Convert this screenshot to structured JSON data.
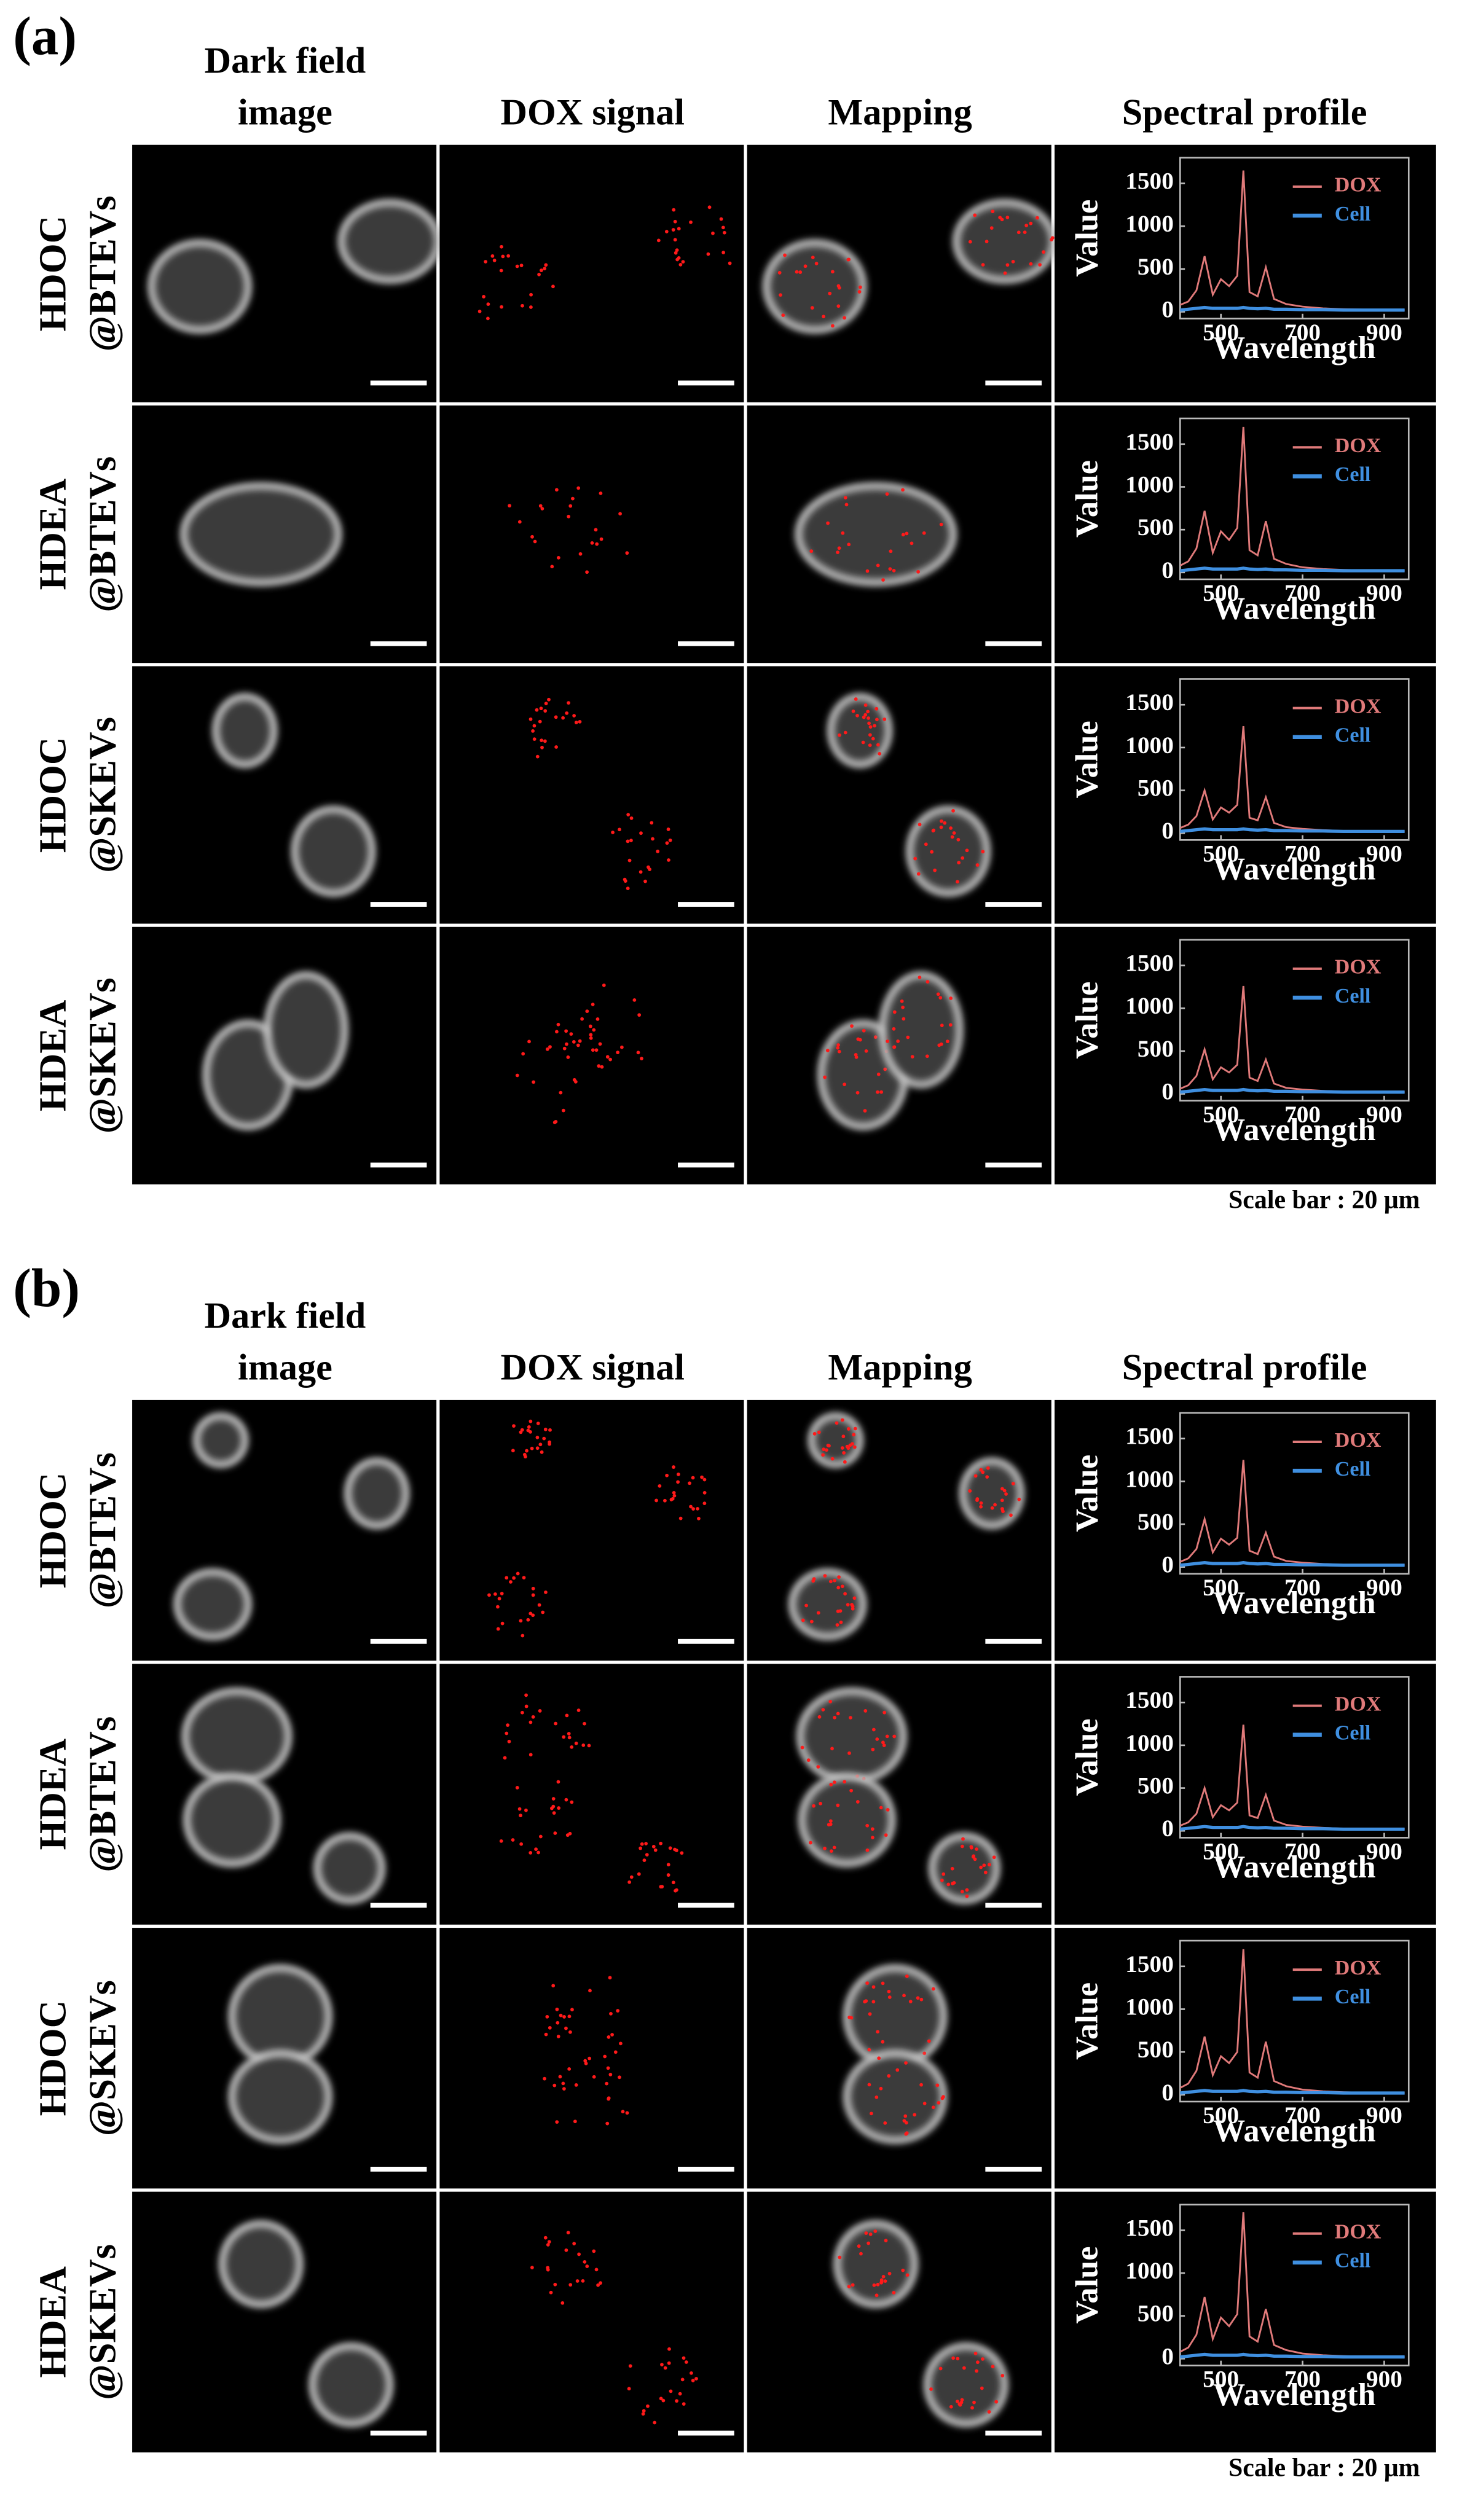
{
  "panels": [
    {
      "label": "(a)",
      "columns": [
        [
          "Dark field",
          "image"
        ],
        [
          "DOX signal"
        ],
        [
          "Mapping"
        ],
        [
          "Spectral profile"
        ]
      ],
      "rows": [
        {
          "sample": "HDOC",
          "carrier": "@BTEVs",
          "spectrum": {
            "type": "line",
            "xlabel": "Wavelength",
            "ylabel": "Value",
            "x": [
              400,
              420,
              440,
              460,
              480,
              500,
              520,
              540,
              555,
              570,
              590,
              610,
              630,
              660,
              700,
              750,
              800,
              850,
              900,
              950
            ],
            "xlim": [
              400,
              960
            ],
            "ylim": [
              -80,
              1800
            ],
            "xticks": [
              500,
              700,
              900
            ],
            "yticks": [
              0,
              500,
              1000,
              1500
            ],
            "legend": "upper right",
            "series": [
              {
                "name": "DOX",
                "color": "#e07a7a",
                "values": [
                  80,
                  120,
                  250,
                  650,
                  200,
                  380,
                  300,
                  420,
                  1650,
                  230,
                  180,
                  520,
                  150,
                  90,
                  60,
                  40,
                  30,
                  25,
                  20,
                  20
                ]
              },
              {
                "name": "Cell",
                "color": "#3f8fe0",
                "values": [
                  20,
                  30,
                  40,
                  50,
                  40,
                  40,
                  40,
                  40,
                  50,
                  40,
                  35,
                  40,
                  30,
                  30,
                  25,
                  25,
                  20,
                  20,
                  20,
                  20
                ]
              }
            ]
          }
        },
        {
          "sample": "HDEA",
          "carrier": "@BTEVs",
          "spectrum": {
            "type": "line",
            "xlabel": "Wavelength",
            "ylabel": "Value",
            "x": [
              400,
              420,
              440,
              460,
              480,
              500,
              520,
              540,
              555,
              570,
              590,
              610,
              630,
              660,
              700,
              750,
              800,
              850,
              900,
              950
            ],
            "xlim": [
              400,
              960
            ],
            "ylim": [
              -80,
              1800
            ],
            "xticks": [
              500,
              700,
              900
            ],
            "yticks": [
              0,
              500,
              1000,
              1500
            ],
            "legend": "upper right",
            "series": [
              {
                "name": "DOX",
                "color": "#e07a7a",
                "values": [
                  80,
                  130,
                  280,
                  720,
                  230,
                  480,
                  380,
                  520,
                  1700,
                  260,
                  200,
                  600,
                  160,
                  100,
                  60,
                  40,
                  30,
                  25,
                  20,
                  20
                ]
              },
              {
                "name": "Cell",
                "color": "#3f8fe0",
                "values": [
                  20,
                  30,
                  40,
                  50,
                  40,
                  40,
                  40,
                  40,
                  50,
                  40,
                  35,
                  40,
                  30,
                  30,
                  25,
                  25,
                  20,
                  20,
                  20,
                  20
                ]
              }
            ]
          }
        },
        {
          "sample": "HDOC",
          "carrier": "@SKEVs",
          "spectrum": {
            "type": "line",
            "xlabel": "Wavelength",
            "ylabel": "Value",
            "x": [
              400,
              420,
              440,
              460,
              480,
              500,
              520,
              540,
              555,
              570,
              590,
              610,
              630,
              660,
              700,
              750,
              800,
              850,
              900,
              950
            ],
            "xlim": [
              400,
              960
            ],
            "ylim": [
              -80,
              1800
            ],
            "xticks": [
              500,
              700,
              900
            ],
            "yticks": [
              0,
              500,
              1000,
              1500
            ],
            "legend": "upper right",
            "series": [
              {
                "name": "DOX",
                "color": "#e07a7a",
                "values": [
                  60,
                  100,
                  200,
                  500,
                  160,
                  300,
                  240,
                  330,
                  1250,
                  180,
                  150,
                  420,
                  120,
                  70,
                  50,
                  35,
                  25,
                  20,
                  20,
                  20
                ]
              },
              {
                "name": "Cell",
                "color": "#3f8fe0",
                "values": [
                  20,
                  30,
                  40,
                  50,
                  40,
                  40,
                  40,
                  40,
                  50,
                  40,
                  35,
                  40,
                  30,
                  30,
                  25,
                  25,
                  20,
                  20,
                  20,
                  20
                ]
              }
            ]
          }
        },
        {
          "sample": "HDEA",
          "carrier": "@SKEVs",
          "spectrum": {
            "type": "line",
            "xlabel": "Wavelength",
            "ylabel": "Value",
            "x": [
              400,
              420,
              440,
              460,
              480,
              500,
              520,
              540,
              555,
              570,
              590,
              610,
              630,
              660,
              700,
              750,
              800,
              850,
              900,
              950
            ],
            "xlim": [
              400,
              960
            ],
            "ylim": [
              -80,
              1800
            ],
            "xticks": [
              500,
              700,
              900
            ],
            "yticks": [
              0,
              500,
              1000,
              1500
            ],
            "legend": "upper right",
            "series": [
              {
                "name": "DOX",
                "color": "#e07a7a",
                "values": [
                  60,
                  100,
                  210,
                  520,
                  170,
                  310,
                  250,
                  340,
                  1260,
                  190,
                  150,
                  400,
                  120,
                  70,
                  50,
                  35,
                  25,
                  20,
                  20,
                  20
                ]
              },
              {
                "name": "Cell",
                "color": "#3f8fe0",
                "values": [
                  20,
                  30,
                  40,
                  50,
                  40,
                  40,
                  40,
                  40,
                  50,
                  40,
                  35,
                  40,
                  30,
                  30,
                  25,
                  25,
                  20,
                  20,
                  20,
                  20
                ]
              }
            ]
          }
        }
      ],
      "scale_bar": "Scale bar : 20 μm"
    },
    {
      "label": "(b)",
      "columns": [
        [
          "Dark field",
          "image"
        ],
        [
          "DOX signal"
        ],
        [
          "Mapping"
        ],
        [
          "Spectral profile"
        ]
      ],
      "rows": [
        {
          "sample": "HDOC",
          "carrier": "@BTEVs",
          "spectrum": {
            "type": "line",
            "xlabel": "Wavelength",
            "ylabel": "Value",
            "x": [
              400,
              420,
              440,
              460,
              480,
              500,
              520,
              540,
              555,
              570,
              590,
              610,
              630,
              660,
              700,
              750,
              800,
              850,
              900,
              950
            ],
            "xlim": [
              400,
              960
            ],
            "ylim": [
              -80,
              1800
            ],
            "xticks": [
              500,
              700,
              900
            ],
            "yticks": [
              0,
              500,
              1000,
              1500
            ],
            "legend": "upper right",
            "series": [
              {
                "name": "DOX",
                "color": "#e07a7a",
                "values": [
                  60,
                  100,
                  210,
                  560,
                  170,
                  330,
                  260,
                  340,
                  1250,
                  190,
                  150,
                  400,
                  120,
                  70,
                  50,
                  35,
                  25,
                  20,
                  20,
                  20
                ]
              },
              {
                "name": "Cell",
                "color": "#3f8fe0",
                "values": [
                  20,
                  30,
                  40,
                  50,
                  40,
                  40,
                  40,
                  40,
                  50,
                  40,
                  35,
                  40,
                  30,
                  30,
                  25,
                  25,
                  20,
                  20,
                  20,
                  20
                ]
              }
            ]
          }
        },
        {
          "sample": "HDEA",
          "carrier": "@BTEVs",
          "spectrum": {
            "type": "line",
            "xlabel": "Wavelength",
            "ylabel": "Value",
            "x": [
              400,
              420,
              440,
              460,
              480,
              500,
              520,
              540,
              555,
              570,
              590,
              610,
              630,
              660,
              700,
              750,
              800,
              850,
              900,
              950
            ],
            "xlim": [
              400,
              960
            ],
            "ylim": [
              -80,
              1800
            ],
            "xticks": [
              500,
              700,
              900
            ],
            "yticks": [
              0,
              500,
              1000,
              1500
            ],
            "legend": "upper right",
            "series": [
              {
                "name": "DOX",
                "color": "#e07a7a",
                "values": [
                  60,
                  100,
                  200,
                  500,
                  160,
                  300,
                  240,
                  330,
                  1240,
                  180,
                  150,
                  420,
                  120,
                  70,
                  50,
                  35,
                  25,
                  20,
                  20,
                  20
                ]
              },
              {
                "name": "Cell",
                "color": "#3f8fe0",
                "values": [
                  20,
                  30,
                  40,
                  50,
                  40,
                  40,
                  40,
                  40,
                  50,
                  40,
                  35,
                  40,
                  30,
                  30,
                  25,
                  25,
                  20,
                  20,
                  20,
                  20
                ]
              }
            ]
          }
        },
        {
          "sample": "HDOC",
          "carrier": "@SKEVs",
          "spectrum": {
            "type": "line",
            "xlabel": "Wavelength",
            "ylabel": "Value",
            "x": [
              400,
              420,
              440,
              460,
              480,
              500,
              520,
              540,
              555,
              570,
              590,
              610,
              630,
              660,
              700,
              750,
              800,
              850,
              900,
              950
            ],
            "xlim": [
              400,
              960
            ],
            "ylim": [
              -80,
              1800
            ],
            "xticks": [
              500,
              700,
              900
            ],
            "yticks": [
              0,
              500,
              1000,
              1500
            ],
            "legend": "upper right",
            "series": [
              {
                "name": "DOX",
                "color": "#e07a7a",
                "values": [
                  80,
                  130,
                  280,
                  680,
                  230,
                  450,
                  370,
                  500,
                  1700,
                  260,
                  200,
                  620,
                  160,
                  100,
                  60,
                  40,
                  30,
                  25,
                  20,
                  20
                ]
              },
              {
                "name": "Cell",
                "color": "#3f8fe0",
                "values": [
                  20,
                  30,
                  40,
                  50,
                  40,
                  40,
                  40,
                  40,
                  50,
                  40,
                  35,
                  40,
                  30,
                  30,
                  25,
                  25,
                  20,
                  20,
                  20,
                  20
                ]
              }
            ]
          }
        },
        {
          "sample": "HDEA",
          "carrier": "@SKEVs",
          "spectrum": {
            "type": "line",
            "xlabel": "Wavelength",
            "ylabel": "Value",
            "x": [
              400,
              420,
              440,
              460,
              480,
              500,
              520,
              540,
              555,
              570,
              590,
              610,
              630,
              660,
              700,
              750,
              800,
              850,
              900,
              950
            ],
            "xlim": [
              400,
              960
            ],
            "ylim": [
              -80,
              1800
            ],
            "xticks": [
              500,
              700,
              900
            ],
            "yticks": [
              0,
              500,
              1000,
              1500
            ],
            "legend": "upper right",
            "series": [
              {
                "name": "DOX",
                "color": "#e07a7a",
                "values": [
                  80,
                  130,
                  280,
                  720,
                  230,
                  480,
                  380,
                  520,
                  1710,
                  260,
                  200,
                  580,
                  160,
                  100,
                  60,
                  40,
                  30,
                  25,
                  20,
                  20
                ]
              },
              {
                "name": "Cell",
                "color": "#3f8fe0",
                "values": [
                  20,
                  30,
                  40,
                  50,
                  40,
                  40,
                  40,
                  40,
                  50,
                  40,
                  35,
                  40,
                  30,
                  30,
                  25,
                  25,
                  20,
                  20,
                  20,
                  20
                ]
              }
            ]
          }
        }
      ],
      "scale_bar": "Scale bar : 20 μm"
    }
  ]
}
